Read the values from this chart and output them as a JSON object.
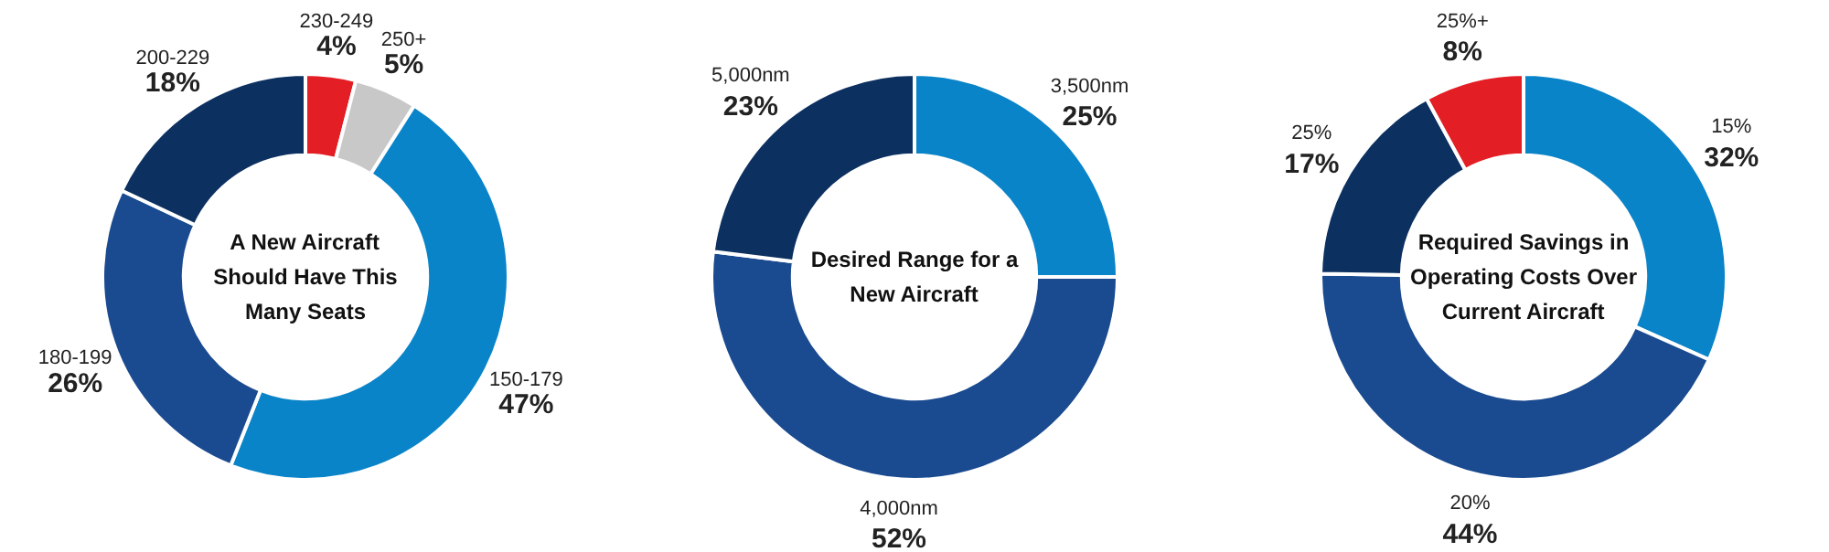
{
  "chart_data": [
    {
      "type": "donut",
      "title": "A New Aircraft Should Have This Many Seats",
      "categories": [
        "230-249",
        "250+",
        "150-179",
        "180-199",
        "200-229"
      ],
      "values": [
        4,
        5,
        47,
        26,
        18
      ],
      "colors": [
        "#e31e24",
        "#c8c8c8",
        "#0a84c8",
        "#1a4a8f",
        "#0c3060"
      ],
      "value_labels": [
        "4%",
        "5%",
        "47%",
        "26%",
        "18%"
      ]
    },
    {
      "type": "donut",
      "title": "Desired Range for a New Aircraft",
      "categories": [
        "3,500nm",
        "4,000nm",
        "5,000nm"
      ],
      "values": [
        25,
        52,
        23
      ],
      "colors": [
        "#0a84c8",
        "#1a4a8f",
        "#0c3060"
      ],
      "value_labels": [
        "25%",
        "52%",
        "23%"
      ]
    },
    {
      "type": "donut",
      "title": "Required Savings in Operating Costs Over Current Aircraft",
      "categories": [
        "15%",
        "20%",
        "25%",
        "25%+"
      ],
      "values": [
        32,
        44,
        17,
        8
      ],
      "colors": [
        "#0a84c8",
        "#1a4a8f",
        "#0c3060",
        "#e31e24"
      ],
      "value_labels": [
        "32%",
        "44%",
        "17%",
        "8%"
      ]
    }
  ]
}
